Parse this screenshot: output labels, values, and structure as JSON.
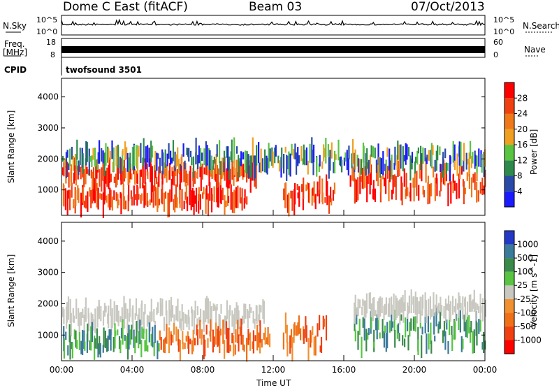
{
  "header": {
    "station": "Dome C East (fitACF)",
    "beam": "Beam 03",
    "date": "07/Oct/2013"
  },
  "strip": {
    "nsky_label": "N.Sky",
    "nsky_top": "10^5",
    "nsky_bottom": "10^0",
    "nsearch_label": "N.Search",
    "nsearch_top": "10^5",
    "nsearch_bottom": "10^0",
    "freq_label": "Freq.",
    "freq_unit": "[MHz]",
    "freq_top": "18",
    "freq_bottom": "8",
    "nave_label": "Nave",
    "nave_top": "60",
    "nave_bottom": "0",
    "cpid_label": "CPID",
    "cpid_value": "twofsound 3501"
  },
  "colors": {
    "power_scale": [
      "#1a1aff",
      "#2a4aa8",
      "#2e8a4a",
      "#58c442",
      "#f0a020",
      "#f07818",
      "#f04010",
      "#ff0000"
    ],
    "velocity_scale": [
      "#2438c8",
      "#3a7a9a",
      "#3a8a4a",
      "#58c442",
      "#c8c8c0",
      "#f09030",
      "#f07018",
      "#f04010",
      "#ff0000"
    ]
  },
  "chart_data": [
    {
      "type": "heatmap",
      "panel": "power",
      "xlabel": "",
      "ylabel": "Slant Range [km]",
      "ylim": [
        180,
        4600
      ],
      "xlim": [
        "00:00",
        "24:00"
      ],
      "y_ticks": [
        "1000",
        "2000",
        "3000",
        "4000"
      ],
      "colorbar_label": "Power [dB]",
      "colorbar_ticks": [
        "4",
        "8",
        "12",
        "16",
        "20",
        "24",
        "28"
      ],
      "bands": [
        {
          "t0": 0.0,
          "t1": 10.5,
          "r0": 500,
          "r1": 1000,
          "value": "high"
        },
        {
          "t0": 0.0,
          "t1": 11.0,
          "r0": 1300,
          "r1": 1700,
          "value": "high"
        },
        {
          "t0": 12.5,
          "t1": 15.5,
          "r0": 500,
          "r1": 1200,
          "value": "high"
        },
        {
          "t0": 16.3,
          "t1": 24.0,
          "r0": 800,
          "r1": 1700,
          "value": "high"
        },
        {
          "t0": 0.0,
          "t1": 24.0,
          "r0": 1700,
          "r1": 2300,
          "value": "medium"
        }
      ]
    },
    {
      "type": "heatmap",
      "panel": "velocity",
      "xlabel": "Time UT",
      "ylabel": "Slant Range [km]",
      "ylim": [
        180,
        4600
      ],
      "xlim": [
        "00:00",
        "24:00"
      ],
      "x_ticks": [
        "00:00",
        "04:00",
        "08:00",
        "12:00",
        "16:00",
        "20:00",
        "00:00"
      ],
      "y_ticks": [
        "1000",
        "2000",
        "3000",
        "4000"
      ],
      "colorbar_label": "Velocity [m s^-1]",
      "colorbar_ticks": [
        "1000",
        "500",
        "100",
        "25",
        "-25",
        "-100",
        "-500",
        "-1000"
      ],
      "bands": [
        {
          "t0": 0.0,
          "t1": 11.5,
          "r0": 1300,
          "r1": 1900,
          "value": "~0"
        },
        {
          "t0": 0.0,
          "t1": 5.5,
          "r0": 500,
          "r1": 1100,
          "value": "positive"
        },
        {
          "t0": 5.5,
          "t1": 11.8,
          "r0": 500,
          "r1": 1200,
          "value": "negative"
        },
        {
          "t0": 12.5,
          "t1": 15.0,
          "r0": 500,
          "r1": 1400,
          "value": "negative"
        },
        {
          "t0": 16.5,
          "t1": 24.0,
          "r0": 600,
          "r1": 1600,
          "value": "positive"
        },
        {
          "t0": 16.5,
          "t1": 24.0,
          "r0": 1700,
          "r1": 2100,
          "value": "~0"
        }
      ]
    }
  ]
}
